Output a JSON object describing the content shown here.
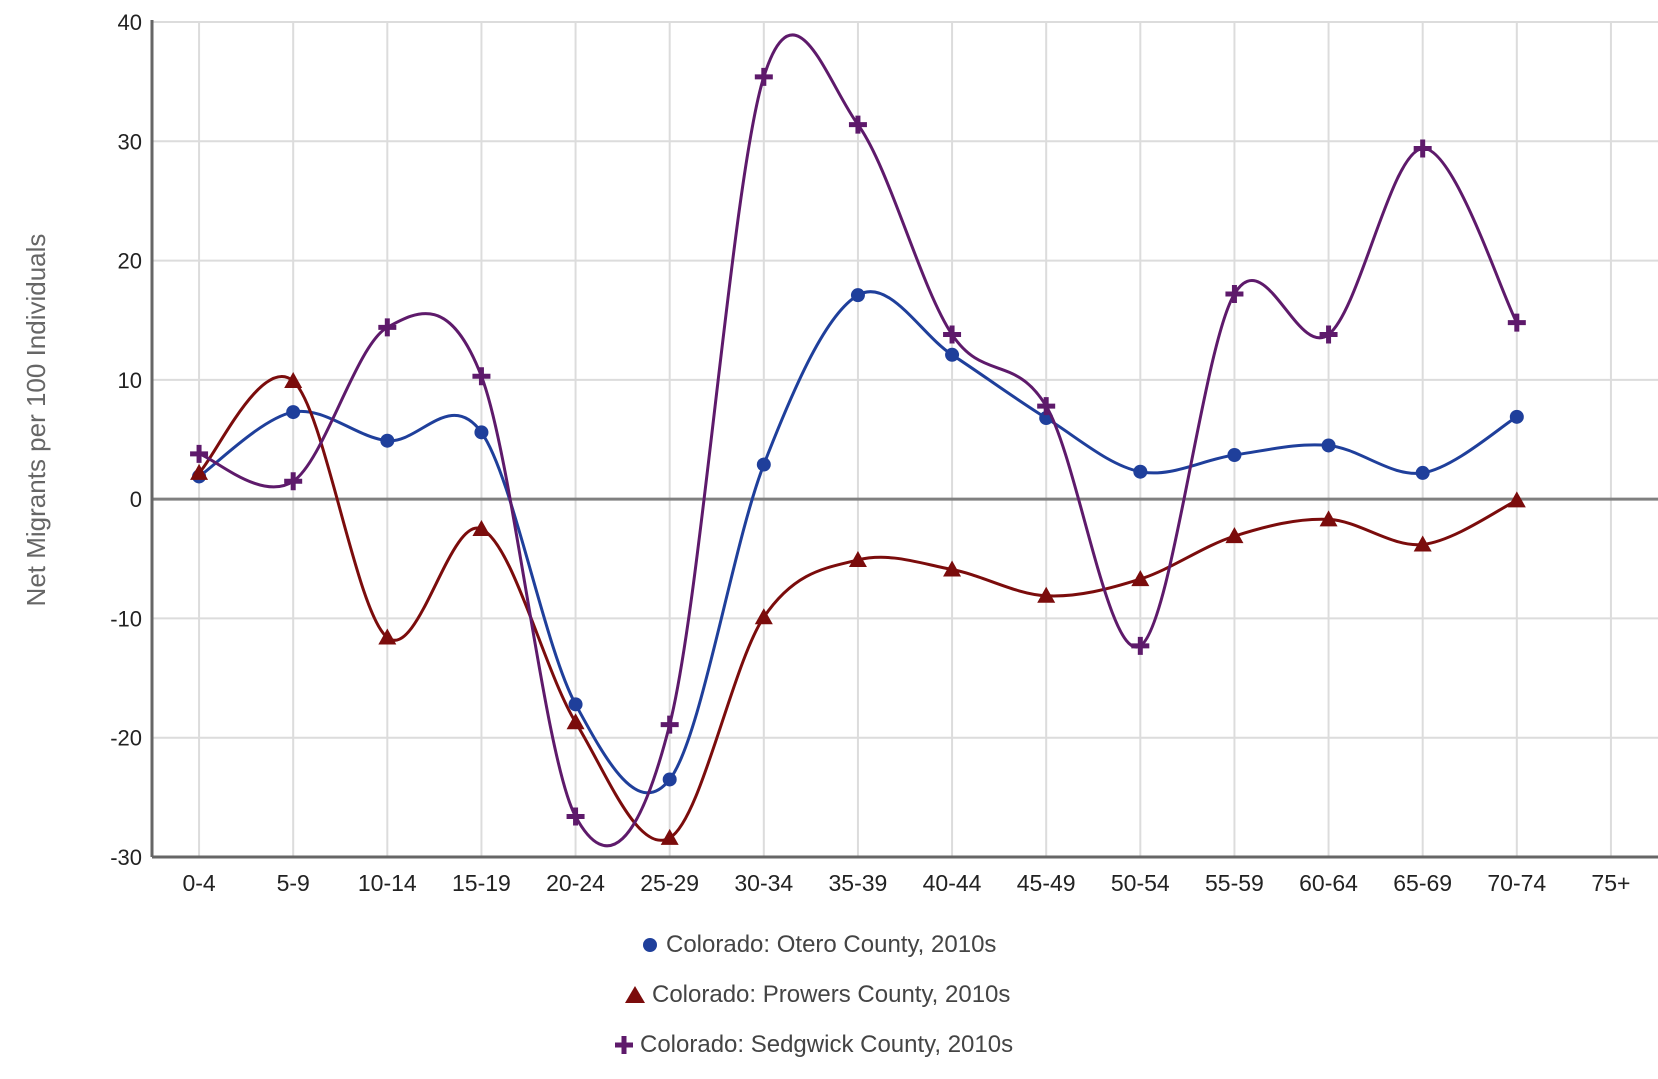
{
  "chart_data": {
    "type": "line",
    "title": "",
    "xlabel": "",
    "ylabel": "Net Migrants per 100 Individuals",
    "ylim": [
      -30,
      40
    ],
    "yticks": [
      40,
      30,
      20,
      10,
      0,
      -10,
      -20,
      -30
    ],
    "categories": [
      "0-4",
      "5-9",
      "10-14",
      "15-19",
      "20-24",
      "25-29",
      "30-34",
      "35-39",
      "40-44",
      "45-49",
      "50-54",
      "55-59",
      "60-64",
      "65-69",
      "70-74",
      "75+"
    ],
    "grid": true,
    "legend_position": "bottom-center",
    "series": [
      {
        "name": "Colorado: Otero County, 2010s",
        "color": "#1f3f9b",
        "marker": "circle",
        "values": [
          1.9,
          7.3,
          4.9,
          5.6,
          -17.2,
          -23.5,
          2.9,
          17.1,
          12.1,
          6.8,
          2.3,
          3.7,
          4.5,
          2.2,
          6.9,
          null
        ]
      },
      {
        "name": "Colorado: Prowers County, 2010s",
        "color": "#7b0c0c",
        "marker": "triangle",
        "values": [
          2.2,
          9.9,
          -11.6,
          -2.5,
          -18.7,
          -28.4,
          -9.9,
          -5.1,
          -5.9,
          -8.1,
          -6.7,
          -3.1,
          -1.7,
          -3.8,
          -0.1,
          null
        ]
      },
      {
        "name": "Colorado: Sedgwick County, 2010s",
        "color": "#5e1a6b",
        "marker": "cross",
        "values": [
          3.8,
          1.5,
          14.4,
          10.3,
          -26.6,
          -18.9,
          35.4,
          31.4,
          13.8,
          7.8,
          -12.3,
          17.2,
          13.8,
          29.4,
          14.8,
          null
        ]
      }
    ]
  }
}
